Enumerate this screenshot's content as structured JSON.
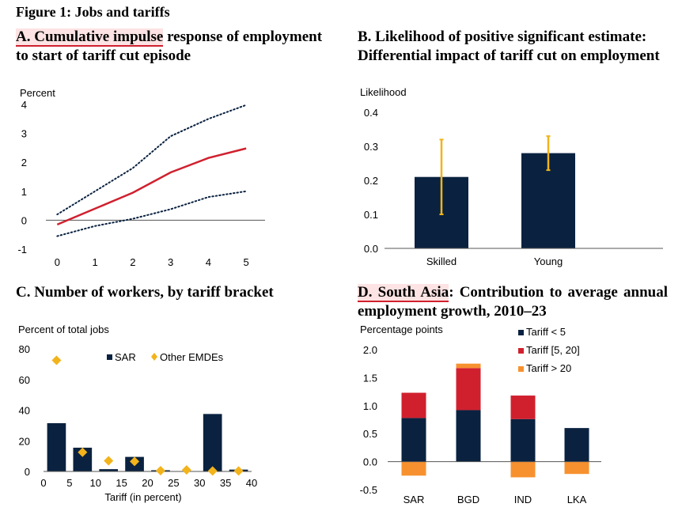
{
  "figure_title": "Figure 1: Jobs and tariffs",
  "colors": {
    "navy": "#0a2240",
    "red": "#d0202e",
    "gold": "#f2b31b",
    "orange": "#f7912f",
    "highlight": "#fde3e3"
  },
  "panel_a": {
    "title_highlight": "A. Cumulative impulse",
    "title_rest": " response of employment to start of tariff cut episode"
  },
  "panel_b": {
    "title": "B. Likelihood of positive significant estimate: Differential impact of tariff cut on employment"
  },
  "panel_c": {
    "title": "C. Number of workers, by tariff bracket"
  },
  "panel_d": {
    "title_highlight": "D. South Asia",
    "title_rest": ": Contribution to average annual employment growth, 2010–23"
  },
  "chart_data": [
    {
      "id": "A",
      "type": "line",
      "ylabel": "Percent",
      "x": [
        0,
        1,
        2,
        3,
        4,
        5
      ],
      "xlim": [
        -0.3,
        5.5
      ],
      "ylim": [
        -1,
        4
      ],
      "yticks": [
        -1,
        0,
        1,
        2,
        3,
        4
      ],
      "xticks": [
        0,
        1,
        2,
        3,
        4,
        5
      ],
      "series": [
        {
          "name": "Cumulative impulse response",
          "style": "solid",
          "values": [
            -0.15,
            0.4,
            0.95,
            1.65,
            2.15,
            2.48
          ]
        },
        {
          "name": "Upper bound",
          "style": "dotted",
          "values": [
            0.2,
            1.0,
            1.8,
            2.9,
            3.5,
            3.98
          ]
        },
        {
          "name": "Lower bound",
          "style": "dotted",
          "values": [
            -0.55,
            -0.2,
            0.05,
            0.38,
            0.8,
            1.0
          ]
        }
      ]
    },
    {
      "id": "B",
      "type": "bar",
      "ylabel": "Likelihood",
      "categories": [
        "Skilled",
        "Young"
      ],
      "values": [
        0.21,
        0.28
      ],
      "error_low": [
        0.1,
        0.23
      ],
      "error_high": [
        0.32,
        0.33
      ],
      "ylim": [
        0,
        0.4
      ],
      "yticks": [
        "0.0",
        "0.1",
        "0.2",
        "0.3",
        "0.4"
      ]
    },
    {
      "id": "C",
      "type": "bar",
      "ylabel": "Percent of total jobs",
      "xlabel": "Tariff (in percent)",
      "x_centers": [
        2.5,
        7.5,
        12.5,
        17.5,
        22.5,
        27.5,
        32.5,
        37.5
      ],
      "xticks": [
        0,
        5,
        10,
        15,
        20,
        25,
        30,
        35,
        40
      ],
      "ylim": [
        0,
        80
      ],
      "yticks": [
        0,
        20,
        40,
        60,
        80
      ],
      "legend": [
        "SAR",
        "Other EMDEs"
      ],
      "series": [
        {
          "name": "SAR",
          "kind": "bar",
          "values": [
            31.5,
            15.5,
            1.5,
            9.5,
            0.8,
            0.2,
            37.5,
            1.2
          ]
        },
        {
          "name": "Other EMDEs",
          "kind": "diamond",
          "values": [
            72.5,
            12.5,
            7,
            6.5,
            0.5,
            1,
            0.3,
            0.3
          ]
        }
      ]
    },
    {
      "id": "D",
      "type": "bar",
      "stacked": true,
      "ylabel": "Percentage points",
      "categories": [
        "SAR",
        "BGD",
        "IND",
        "LKA"
      ],
      "ylim": [
        -0.5,
        2.0
      ],
      "yticks": [
        "-0.5",
        "0.0",
        "0.5",
        "1.0",
        "1.5",
        "2.0"
      ],
      "legend": [
        "Tariff < 5",
        "Tariff [5, 20]",
        "Tariff > 20"
      ],
      "series": [
        {
          "name": "Tariff < 5",
          "values": [
            0.78,
            0.92,
            0.76,
            0.6
          ]
        },
        {
          "name": "Tariff [5, 20]",
          "values": [
            0.45,
            0.75,
            0.42,
            0.0
          ]
        },
        {
          "name": "Tariff > 20",
          "values": [
            -0.25,
            0.08,
            -0.28,
            -0.22
          ]
        }
      ]
    }
  ]
}
